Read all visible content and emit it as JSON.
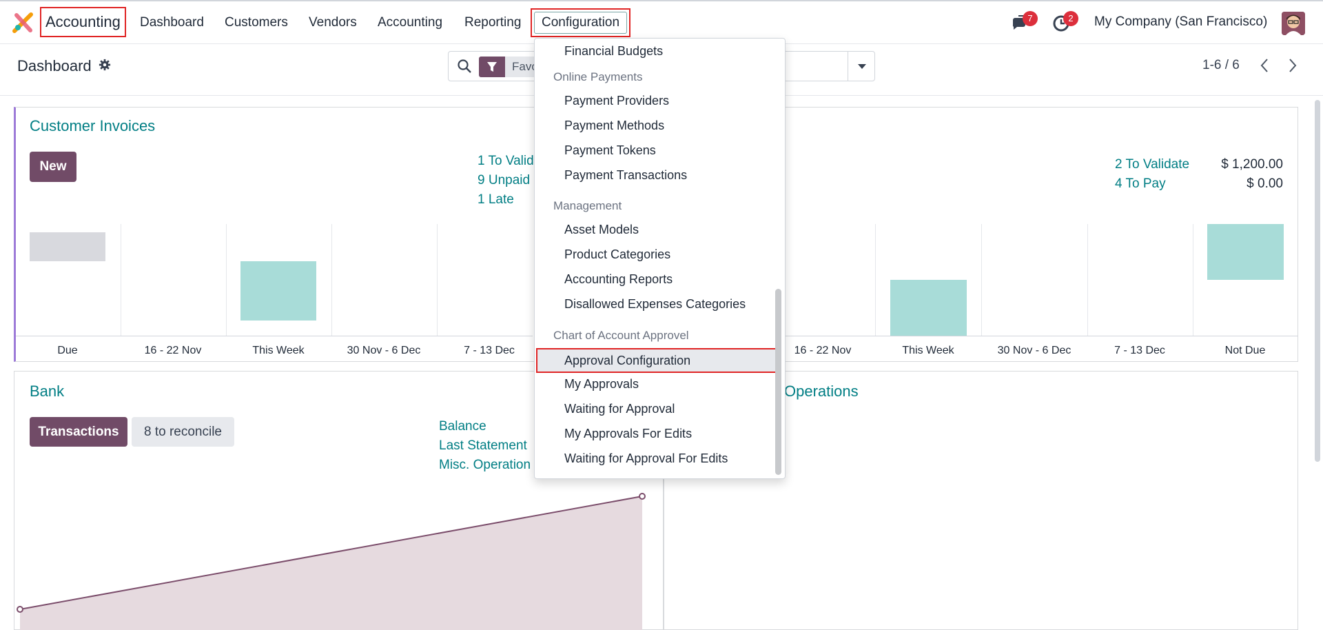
{
  "navbar": {
    "app_name": "Accounting",
    "menu": [
      "Dashboard",
      "Customers",
      "Vendors",
      "Accounting",
      "Reporting",
      "Configuration"
    ],
    "messages_badge": "7",
    "activities_badge": "2",
    "company": "My Company (San Francisco)"
  },
  "control_panel": {
    "breadcrumb": "Dashboard",
    "search_facet": "Favo",
    "pager": "1-6 / 6"
  },
  "customer_invoices": {
    "title": "Customer Invoices",
    "new_button": "New",
    "links": [
      "1 To Valid",
      "9 Unpaid",
      "1 Late"
    ],
    "ticks": [
      "Due",
      "16 - 22 Nov",
      "This Week",
      "30 Nov - 6 Dec",
      "7 - 13 Dec"
    ]
  },
  "vendor_bills": {
    "links": [
      "2 To Validate",
      "4 To Pay"
    ],
    "amounts": [
      "$ 1,200.00",
      "$ 0.00"
    ],
    "ticks": [
      "16 - 22 Nov",
      "This Week",
      "30 Nov - 6 Dec",
      "7 - 13 Dec",
      "Not Due"
    ]
  },
  "bank": {
    "title": "Bank",
    "transactions_button": "Transactions",
    "reconcile_button": "8 to reconcile",
    "links": [
      "Balance",
      "Last Statement",
      "Misc. Operation"
    ]
  },
  "misc_operations": {
    "title_fragment": "Operations"
  },
  "configuration_menu": {
    "top_item": "Financial Budgets",
    "sections": [
      {
        "header": "Online Payments",
        "items": [
          "Payment Providers",
          "Payment Methods",
          "Payment Tokens",
          "Payment Transactions"
        ]
      },
      {
        "header": "Management",
        "items": [
          "Asset Models",
          "Product Categories",
          "Accounting Reports",
          "Disallowed Expenses Categories"
        ]
      },
      {
        "header": "Chart of Account Approvel",
        "items": [
          "Approval Configuration",
          "My Approvals",
          "Waiting for Approval",
          "My Approvals For Edits",
          "Waiting for Approval For Edits"
        ]
      }
    ],
    "active_item": "Approval Configuration"
  },
  "colors": {
    "brand": "#714b67",
    "link": "#017e84",
    "bar_teal": "#a8dcd8",
    "bar_gray": "#d8d9de",
    "highlight": "#e02424"
  }
}
